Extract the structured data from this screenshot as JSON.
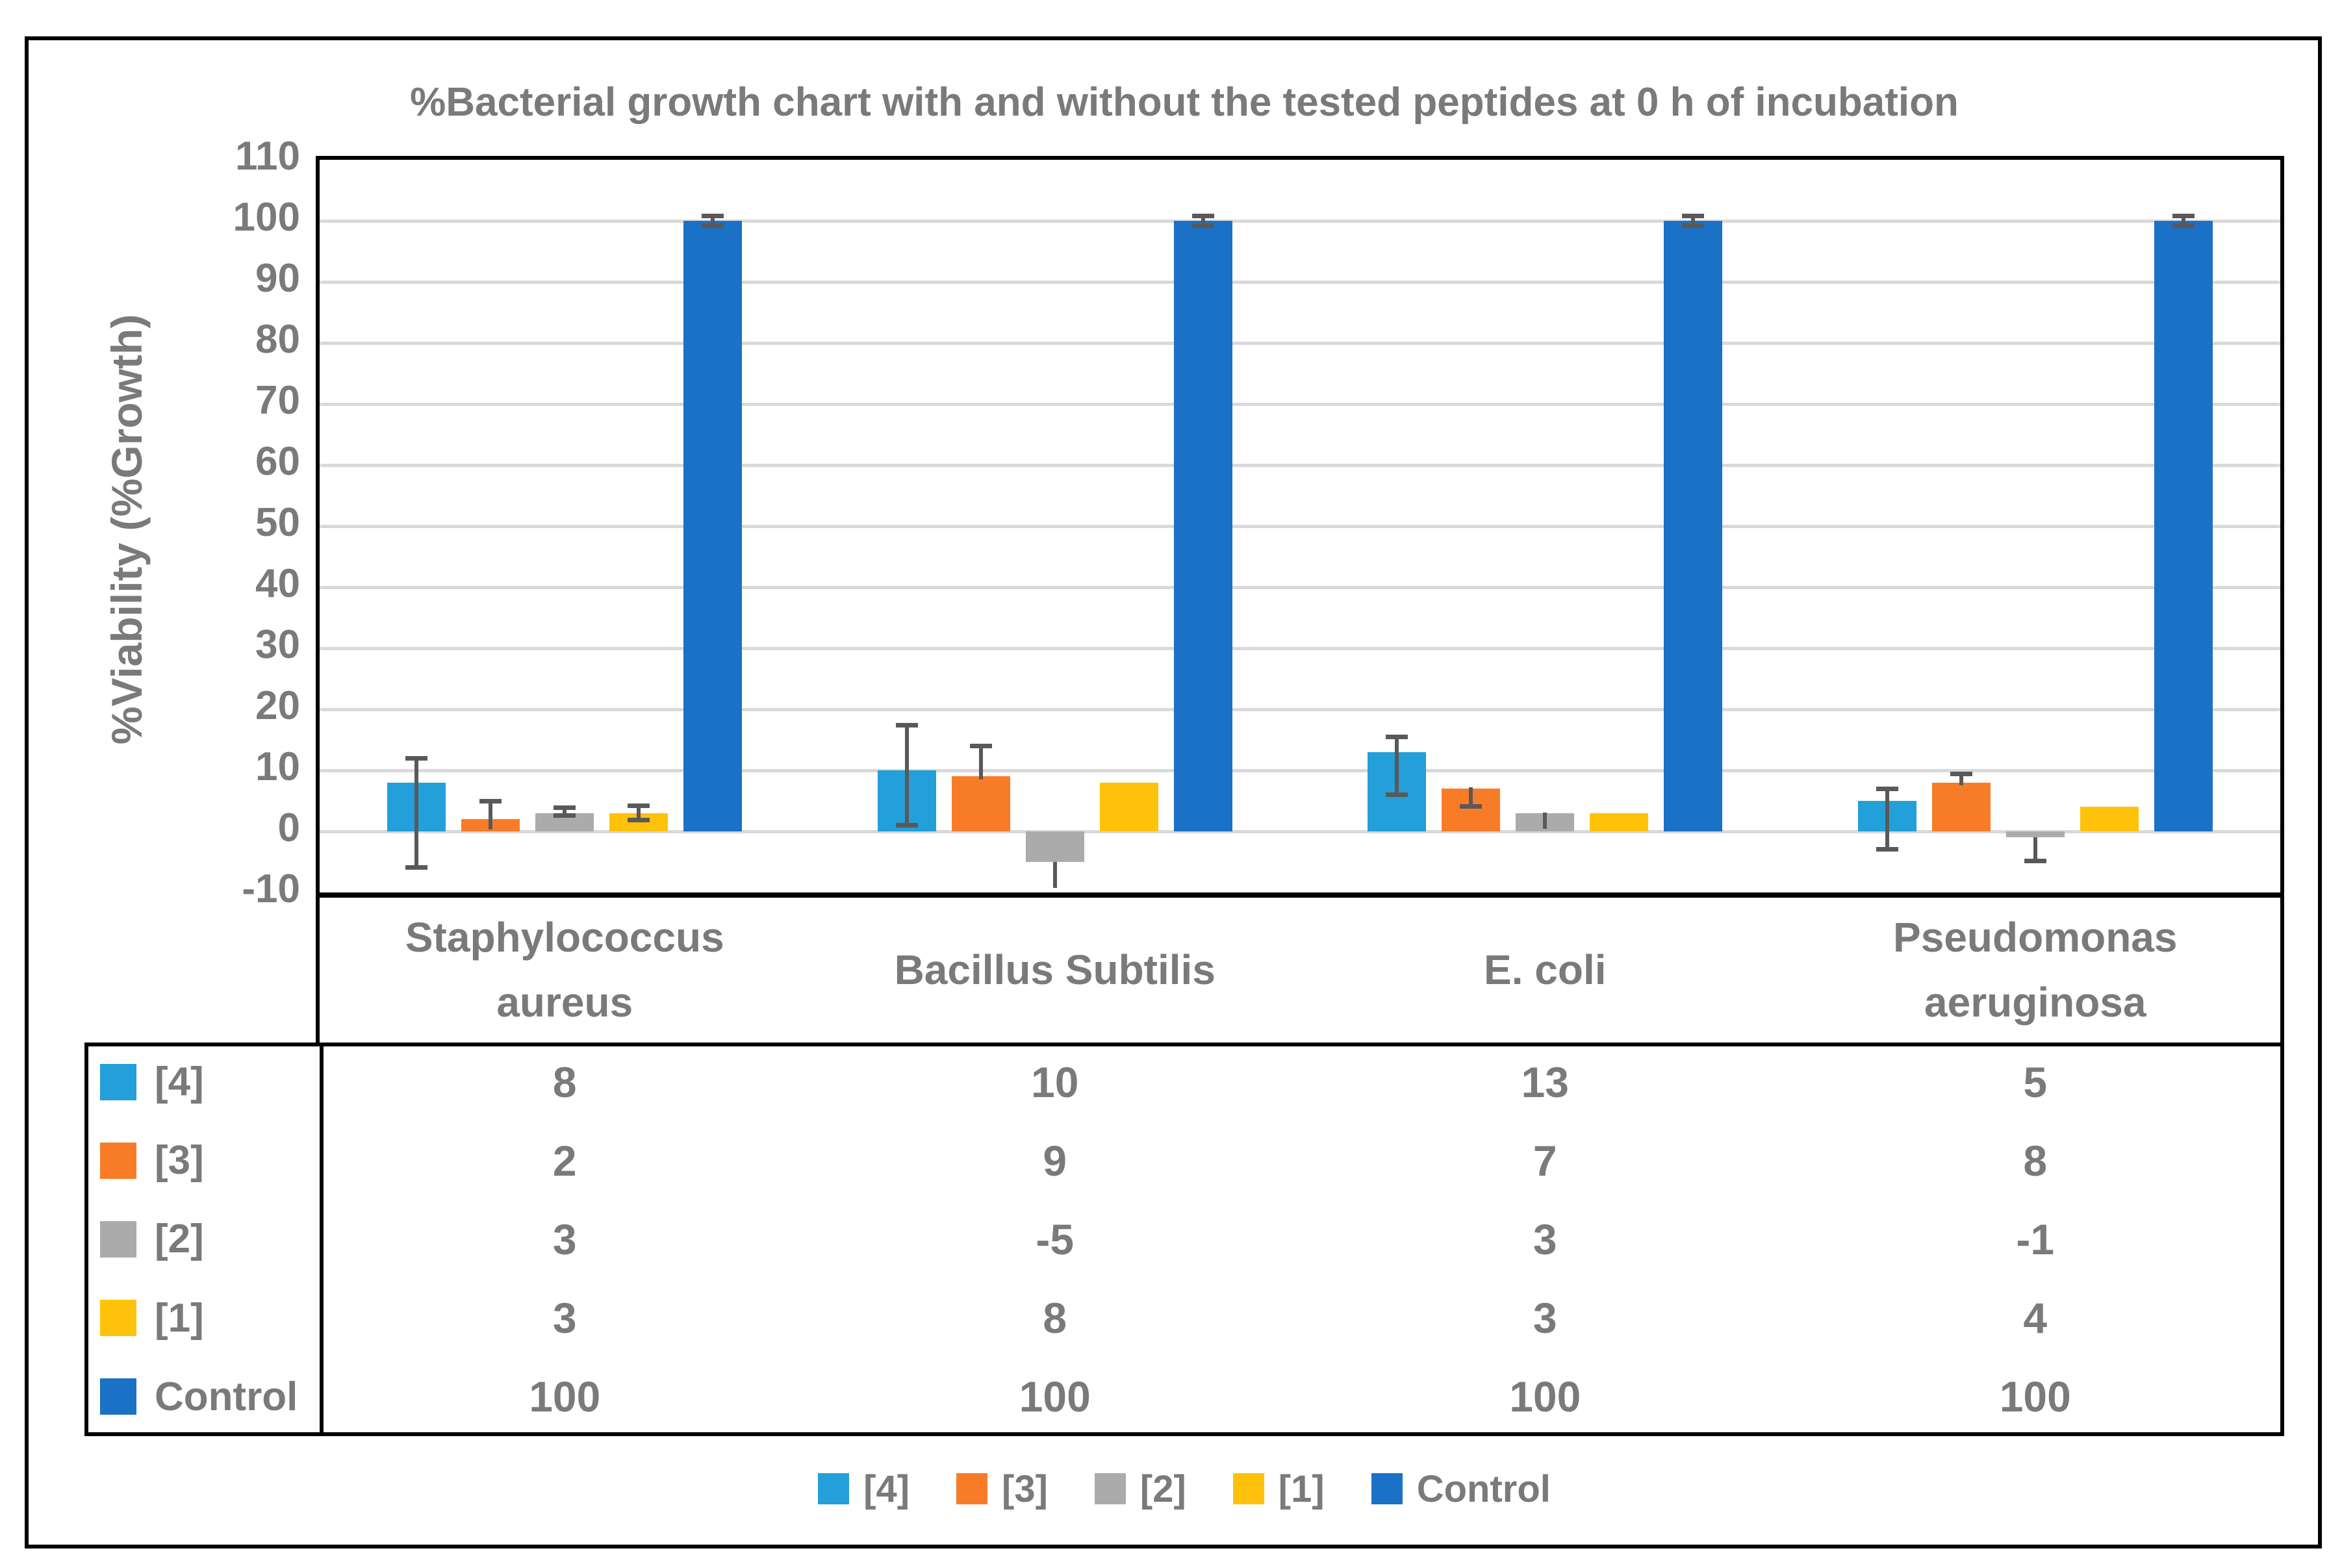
{
  "figure": {
    "title": "%Bacterial growth chart with and without the tested peptides at 0 h of incubation"
  },
  "colors": {
    "series_4": "#239FD9",
    "series_3": "#F87C28",
    "series_2": "#ABABAB",
    "series_1": "#FFC20A",
    "series_control": "#1B71C6",
    "error_bar": "#595959",
    "gridline": "#D9D9D9",
    "axis_line": "#000000",
    "text": "#7A7A7A"
  },
  "chart_data": {
    "type": "bar",
    "title": "%Bacterial growth chart with and without the tested peptides at 0 h of incubation",
    "xlabel": "",
    "ylabel": "%Viability (%Growth)",
    "ylim": [
      -10,
      110
    ],
    "ytick_step": 10,
    "yticks": [
      110,
      100,
      90,
      80,
      70,
      60,
      50,
      40,
      30,
      20,
      10,
      0,
      -10
    ],
    "grid": true,
    "legend_position": "bottom",
    "categories": [
      "Staphylococcus aureus",
      "Bacillus Subtilis",
      "E. coli",
      "Pseudomonas aeruginosa"
    ],
    "categories_display": [
      [
        "Staphylococcus",
        "aureus"
      ],
      [
        "Bacillus Subtilis"
      ],
      [
        "E. coli"
      ],
      [
        "Pseudomonas",
        "aeruginosa"
      ]
    ],
    "series": [
      {
        "name": "[4]",
        "color": "#239FD9",
        "values": [
          8,
          10,
          13,
          5
        ],
        "errors": [
          {
            "hi": 12,
            "lo": -6,
            "capTop": true,
            "capBottom": true
          },
          {
            "hi": 17.5,
            "lo": 1,
            "capTop": true,
            "capBottom": true
          },
          {
            "hi": 15.5,
            "lo": 6,
            "capTop": true,
            "capBottom": true
          },
          {
            "hi": 7,
            "lo": -3,
            "capTop": true,
            "capBottom": true
          }
        ]
      },
      {
        "name": "[3]",
        "color": "#F87C28",
        "values": [
          2,
          9,
          7,
          8
        ],
        "errors": [
          {
            "hi": 5,
            "lo": 0.3,
            "capTop": true,
            "capBottom": false
          },
          {
            "hi": 14,
            "lo": 8.5,
            "capTop": true,
            "capBottom": false
          },
          {
            "hi": 7.2,
            "lo": 4,
            "capTop": false,
            "capBottom": true
          },
          {
            "hi": 9.5,
            "lo": 7.6,
            "capTop": true,
            "capBottom": false
          }
        ]
      },
      {
        "name": "[2]",
        "color": "#ABABAB",
        "values": [
          3,
          -5,
          3,
          -1
        ],
        "errors": [
          {
            "hi": 3.9,
            "lo": 2.6,
            "capTop": true,
            "capBottom": true
          },
          {
            "hi": -5,
            "lo": -9.3,
            "capTop": false,
            "capBottom": false
          },
          {
            "hi": 3.1,
            "lo": 0.4,
            "capTop": false,
            "capBottom": false
          },
          {
            "hi": -1,
            "lo": -4.9,
            "capTop": false,
            "capBottom": true
          }
        ]
      },
      {
        "name": "[1]",
        "color": "#FFC20A",
        "values": [
          3,
          8,
          3,
          4
        ],
        "errors": [
          {
            "hi": 4.3,
            "lo": 1.8,
            "capTop": true,
            "capBottom": true
          },
          null,
          null,
          null
        ]
      },
      {
        "name": "Control",
        "color": "#1B71C6",
        "values": [
          100,
          100,
          100,
          100
        ],
        "errors": [
          {
            "hi": 100.8,
            "lo": 99.2,
            "capTop": true,
            "capBottom": true
          },
          {
            "hi": 100.8,
            "lo": 99.2,
            "capTop": true,
            "capBottom": true
          },
          {
            "hi": 100.8,
            "lo": 99.2,
            "capTop": true,
            "capBottom": true
          },
          {
            "hi": 100.8,
            "lo": 99.2,
            "capTop": true,
            "capBottom": true
          }
        ]
      }
    ]
  },
  "data_table": {
    "row_labels": [
      "[4]",
      "[3]",
      "[2]",
      "[1]",
      "Control"
    ],
    "row_colors": [
      "#239FD9",
      "#F87C28",
      "#ABABAB",
      "#FFC20A",
      "#1B71C6"
    ],
    "rows": [
      [
        "8",
        "10",
        "13",
        "5"
      ],
      [
        "2",
        "9",
        "7",
        "8"
      ],
      [
        "3",
        "-5",
        "3",
        "-1"
      ],
      [
        "3",
        "8",
        "3",
        "4"
      ],
      [
        "100",
        "100",
        "100",
        "100"
      ]
    ]
  },
  "legend": {
    "items": [
      {
        "label": "[4]",
        "color": "#239FD9"
      },
      {
        "label": "[3]",
        "color": "#F87C28"
      },
      {
        "label": "[2]",
        "color": "#ABABAB"
      },
      {
        "label": "[1]",
        "color": "#FFC20A"
      },
      {
        "label": "Control",
        "color": "#1B71C6"
      }
    ]
  }
}
